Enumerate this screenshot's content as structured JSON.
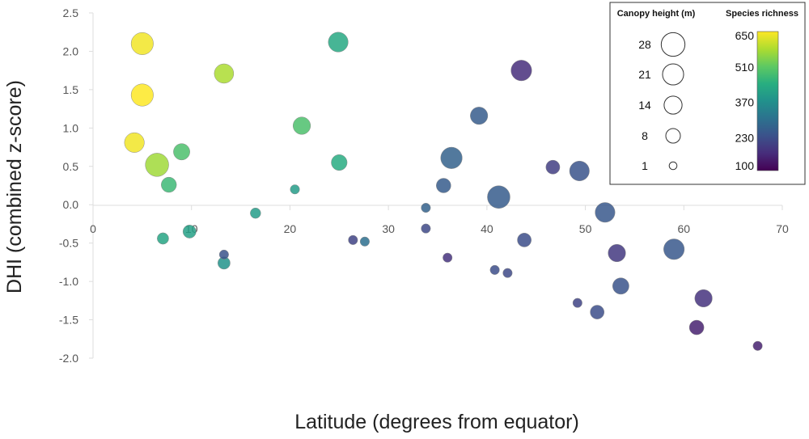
{
  "chart_data": {
    "type": "scatter",
    "title": "",
    "xlabel": "Latitude (degrees from equator)",
    "ylabel": "DHI (combined z-score)",
    "xlim": [
      0,
      70
    ],
    "ylim": [
      -2.0,
      2.5
    ],
    "x_ticks": [
      0,
      10,
      20,
      30,
      40,
      50,
      60,
      70
    ],
    "x_tick_labels": [
      "0",
      "10",
      "20",
      "30",
      "40",
      "50",
      "60",
      "70"
    ],
    "y_ticks": [
      2.5,
      2.0,
      1.5,
      1.0,
      0.5,
      0.0,
      -0.5,
      -1.0,
      -1.5,
      -2.0
    ],
    "y_tick_labels": [
      "2.5",
      "2.0",
      "1.5",
      "1.0",
      "0.5",
      "0.0",
      "-0.5",
      "-1.0",
      "-1.5",
      "-2.0"
    ],
    "grid": false,
    "legend_position": "top-right",
    "size_legend": {
      "title": "Canopy height (m)",
      "values": [
        28,
        21,
        14,
        8,
        1
      ],
      "labels": [
        "28",
        "21",
        "14",
        "8",
        "1"
      ]
    },
    "color_legend": {
      "title": "Species richness",
      "range": [
        100,
        650
      ],
      "ticks": [
        650,
        510,
        370,
        230,
        100
      ],
      "tick_labels": [
        "650",
        "510",
        "370",
        "230",
        "100"
      ],
      "colormap": "viridis"
    },
    "points": [
      {
        "x": 5.0,
        "y": 2.1,
        "canopy": 24,
        "richness": 640
      },
      {
        "x": 5.0,
        "y": 1.43,
        "canopy": 24,
        "richness": 650
      },
      {
        "x": 4.2,
        "y": 0.81,
        "canopy": 18,
        "richness": 640
      },
      {
        "x": 6.5,
        "y": 0.52,
        "canopy": 27,
        "richness": 570
      },
      {
        "x": 9.0,
        "y": 0.69,
        "canopy": 11,
        "richness": 490
      },
      {
        "x": 7.7,
        "y": 0.26,
        "canopy": 9,
        "richness": 470
      },
      {
        "x": 13.3,
        "y": 1.71,
        "canopy": 17,
        "richness": 580
      },
      {
        "x": 21.2,
        "y": 1.03,
        "canopy": 13,
        "richness": 490
      },
      {
        "x": 24.9,
        "y": 2.12,
        "canopy": 18,
        "richness": 430
      },
      {
        "x": 25.0,
        "y": 0.55,
        "canopy": 10,
        "richness": 440
      },
      {
        "x": 7.1,
        "y": -0.44,
        "canopy": 4,
        "richness": 420
      },
      {
        "x": 9.8,
        "y": -0.35,
        "canopy": 6,
        "richness": 410
      },
      {
        "x": 13.3,
        "y": -0.65,
        "canopy": 2,
        "richness": 240
      },
      {
        "x": 13.3,
        "y": -0.76,
        "canopy": 5,
        "richness": 380
      },
      {
        "x": 16.5,
        "y": -0.11,
        "canopy": 3,
        "richness": 400
      },
      {
        "x": 20.5,
        "y": 0.2,
        "canopy": 2,
        "richness": 400
      },
      {
        "x": 26.4,
        "y": -0.46,
        "canopy": 2,
        "richness": 210
      },
      {
        "x": 27.6,
        "y": -0.48,
        "canopy": 2,
        "richness": 300
      },
      {
        "x": 33.8,
        "y": -0.04,
        "canopy": 2,
        "richness": 270
      },
      {
        "x": 33.8,
        "y": -0.31,
        "canopy": 2,
        "richness": 220
      },
      {
        "x": 36.0,
        "y": -0.69,
        "canopy": 2,
        "richness": 180
      },
      {
        "x": 35.6,
        "y": 0.25,
        "canopy": 8,
        "richness": 260
      },
      {
        "x": 36.4,
        "y": 0.61,
        "canopy": 22,
        "richness": 270
      },
      {
        "x": 39.2,
        "y": 1.16,
        "canopy": 13,
        "richness": 260
      },
      {
        "x": 41.2,
        "y": 0.1,
        "canopy": 25,
        "richness": 260
      },
      {
        "x": 40.8,
        "y": -0.85,
        "canopy": 2,
        "richness": 230
      },
      {
        "x": 42.1,
        "y": -0.89,
        "canopy": 2,
        "richness": 220
      },
      {
        "x": 43.5,
        "y": 1.75,
        "canopy": 20,
        "richness": 170
      },
      {
        "x": 43.8,
        "y": -0.46,
        "canopy": 7,
        "richness": 230
      },
      {
        "x": 46.7,
        "y": 0.49,
        "canopy": 7,
        "richness": 200
      },
      {
        "x": 49.4,
        "y": 0.44,
        "canopy": 18,
        "richness": 240
      },
      {
        "x": 52.0,
        "y": -0.1,
        "canopy": 18,
        "richness": 250
      },
      {
        "x": 53.2,
        "y": -0.63,
        "canopy": 13,
        "richness": 190
      },
      {
        "x": 49.2,
        "y": -1.28,
        "canopy": 2,
        "richness": 210
      },
      {
        "x": 51.2,
        "y": -1.4,
        "canopy": 7,
        "richness": 230
      },
      {
        "x": 53.6,
        "y": -1.06,
        "canopy": 11,
        "richness": 240
      },
      {
        "x": 59.0,
        "y": -0.58,
        "canopy": 20,
        "richness": 250
      },
      {
        "x": 62.0,
        "y": -1.22,
        "canopy": 13,
        "richness": 180
      },
      {
        "x": 61.3,
        "y": -1.6,
        "canopy": 8,
        "richness": 150
      },
      {
        "x": 67.5,
        "y": -1.84,
        "canopy": 2,
        "richness": 150
      }
    ]
  }
}
